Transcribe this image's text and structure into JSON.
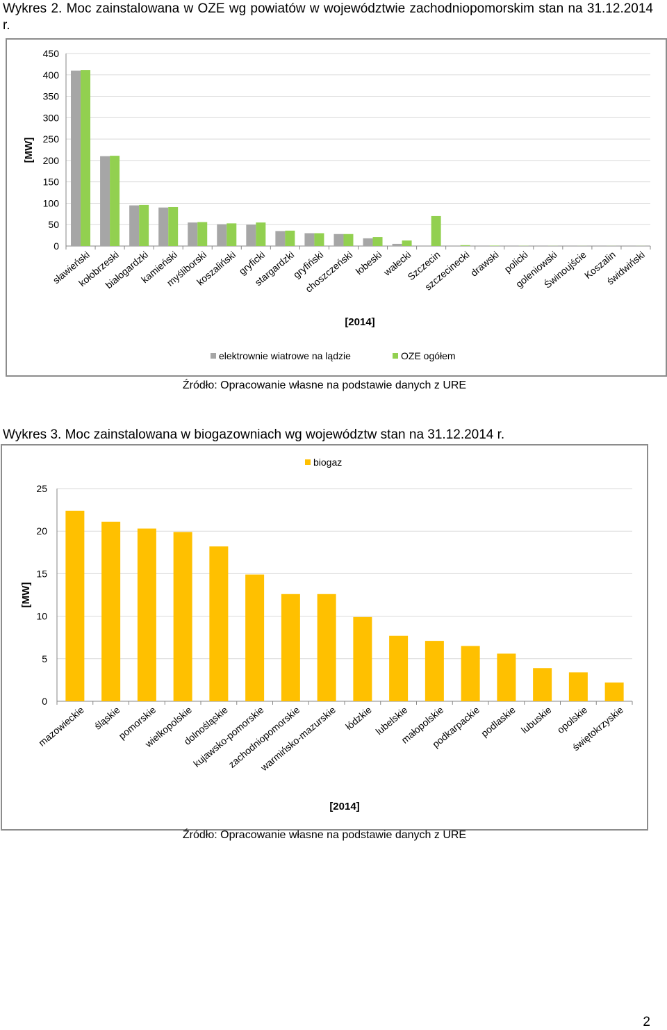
{
  "captions": {
    "chart1": "Wykres 2. Moc zainstalowana w OZE wg powiatów w województwie zachodniopomorskim stan na 31.12.2014 r.",
    "chart2": "Wykres 3. Moc zainstalowana w biogazowniach wg województw stan na 31.12.2014 r.",
    "source1": "Źródło: Opracowanie własne na podstawie danych z URE",
    "source2": "Źródło: Opracowanie własne na podstawie danych z URE"
  },
  "page_number": "2",
  "chart_data": [
    {
      "type": "bar",
      "ylabel": "[MW]",
      "xlabel": "[2014]",
      "ylim": [
        0,
        450
      ],
      "yticks": [
        0,
        50,
        100,
        150,
        200,
        250,
        300,
        350,
        400,
        450
      ],
      "grid": true,
      "legend_position": "bottom",
      "categories": [
        "sławieński",
        "kołobrzeski",
        "białogardzki",
        "kamieński",
        "myśliborski",
        "koszaliński",
        "gryficki",
        "stargardzki",
        "gryfiński",
        "choszczeński",
        "łobeski",
        "wałecki",
        "Szczecin",
        "szczecinecki",
        "drawski",
        "policki",
        "goleniowski",
        "Świnoujście",
        "Koszalin",
        "świdwiński"
      ],
      "series": [
        {
          "name": "elektrownie wiatrowe na lądzie",
          "color": "#a6a6a6",
          "values": [
            410,
            210,
            95,
            90,
            55,
            51,
            50,
            35,
            30,
            28,
            18,
            5,
            0,
            0,
            0,
            0,
            0,
            0,
            0,
            0
          ]
        },
        {
          "name": "OZE ogółem",
          "color": "#92d050",
          "values": [
            411,
            211,
            96,
            91,
            56,
            53,
            55,
            36,
            30,
            28,
            21,
            13,
            70,
            2,
            1,
            0.5,
            0.3,
            0.2,
            0.2,
            0.2
          ]
        }
      ]
    },
    {
      "type": "bar",
      "ylabel": "[MW]",
      "xlabel": "[2014]",
      "ylim": [
        0,
        25
      ],
      "yticks": [
        0,
        5,
        10,
        15,
        20,
        25
      ],
      "grid": true,
      "legend_position": "top",
      "categories": [
        "mazowieckie",
        "śląskie",
        "pomorskie",
        "wielkopolskie",
        "dolnośląskie",
        "kujawsko-pomorskie",
        "zachodniopomorskie",
        "warmińsko-mazurskie",
        "łódzkie",
        "lubelskie",
        "małopolskie",
        "podkarpackie",
        "podlaskie",
        "lubuskie",
        "opolskie",
        "świętokrzyskie"
      ],
      "series": [
        {
          "name": "biogaz",
          "color": "#ffc000",
          "values": [
            22.4,
            21.1,
            20.3,
            19.9,
            18.2,
            14.9,
            12.6,
            12.6,
            9.9,
            7.7,
            7.1,
            6.5,
            5.6,
            3.9,
            3.4,
            2.2
          ]
        }
      ]
    }
  ]
}
